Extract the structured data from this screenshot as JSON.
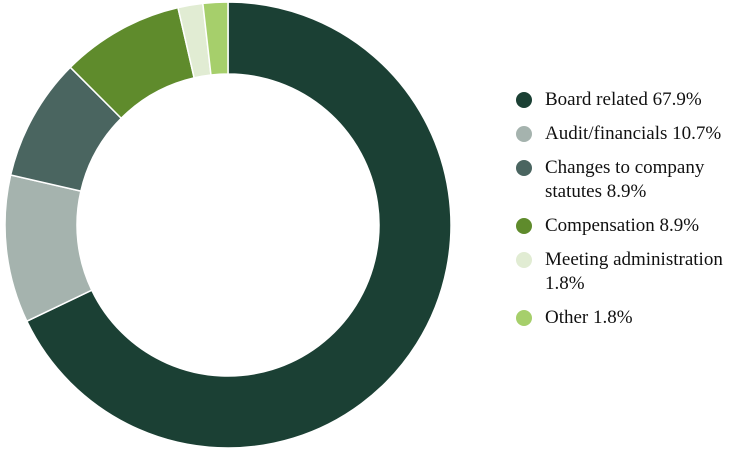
{
  "chart_data": {
    "type": "pie",
    "donut": true,
    "legend_position": "right",
    "slices": [
      {
        "label": "Board related",
        "value": 67.9,
        "legend_text": "Board related 67.9%",
        "color": "#1b4034"
      },
      {
        "label": "Audit/financials",
        "value": 10.7,
        "legend_text": "Audit/financials 10.7%",
        "color": "#a5b3ae"
      },
      {
        "label": "Changes to company statutes",
        "value": 8.9,
        "legend_text": "Changes to company statutes 8.9%",
        "color": "#4a6560"
      },
      {
        "label": "Compensation",
        "value": 8.9,
        "legend_text": "Compensation 8.9%",
        "color": "#5f8b2c"
      },
      {
        "label": "Meeting administration",
        "value": 1.8,
        "legend_text": "Meeting administration 1.8%",
        "color": "#e1ecd3"
      },
      {
        "label": "Other",
        "value": 1.8,
        "legend_text": "Other 1.8%",
        "color": "#a6cf6b"
      }
    ]
  }
}
